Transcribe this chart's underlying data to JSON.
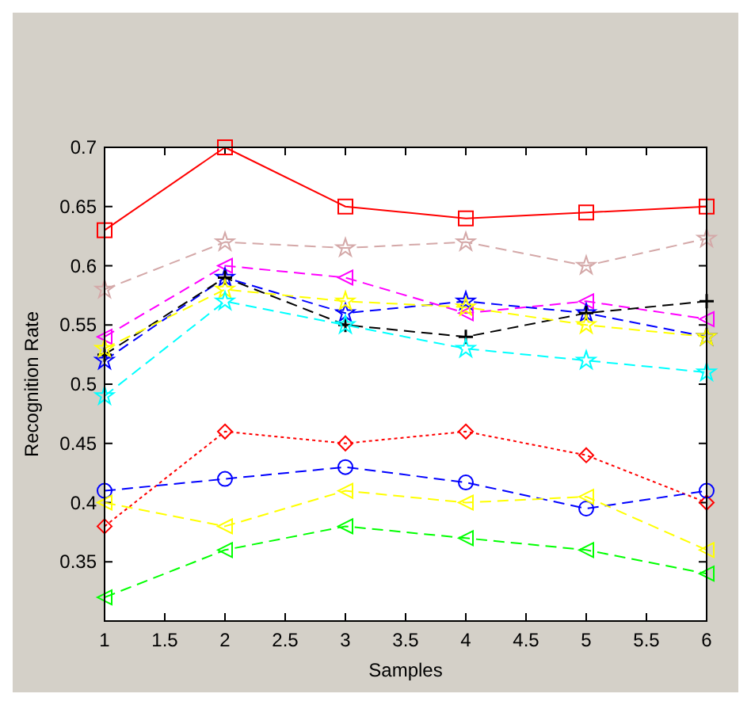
{
  "chart_data": {
    "type": "line",
    "xlabel": "Samples",
    "ylabel": "Recognition Rate",
    "x": [
      1,
      2,
      3,
      4,
      5,
      6
    ],
    "xlim": [
      1,
      6
    ],
    "xticks": [
      1,
      1.5,
      2,
      2.5,
      3,
      3.5,
      4,
      4.5,
      5,
      5.5,
      6
    ],
    "ylim": [
      0.3,
      0.7
    ],
    "yticks": [
      0.35,
      0.4,
      0.45,
      0.5,
      0.55,
      0.6,
      0.65,
      0.7
    ],
    "grid": false,
    "series": [
      {
        "color": "#ff0000",
        "marker": "square",
        "line_style": "solid",
        "values": [
          0.63,
          0.7,
          0.65,
          0.64,
          0.645,
          0.65
        ]
      },
      {
        "color": "#d4a8a8",
        "marker": "star",
        "line_style": "dashed",
        "values": [
          0.58,
          0.62,
          0.615,
          0.62,
          0.6,
          0.623
        ]
      },
      {
        "color": "#ff00ff",
        "marker": "triangle",
        "line_style": "dashed",
        "values": [
          0.54,
          0.6,
          0.59,
          0.56,
          0.57,
          0.555
        ]
      },
      {
        "color": "#0000ff",
        "marker": "star",
        "line_style": "dashed",
        "values": [
          0.52,
          0.59,
          0.56,
          0.57,
          0.56,
          0.54
        ]
      },
      {
        "color": "#000000",
        "marker": "cross",
        "line_style": "dashed",
        "values": [
          0.525,
          0.59,
          0.55,
          0.54,
          0.56,
          0.57
        ]
      },
      {
        "color": "#ffff00",
        "marker": "star",
        "line_style": "dashed",
        "values": [
          0.53,
          0.58,
          0.57,
          0.565,
          0.55,
          0.54
        ]
      },
      {
        "color": "#00ffff",
        "marker": "star",
        "line_style": "dashed",
        "values": [
          0.49,
          0.57,
          0.55,
          0.53,
          0.52,
          0.51
        ]
      },
      {
        "color": "#ff0000",
        "marker": "diamond",
        "line_style": "dotted",
        "values": [
          0.38,
          0.46,
          0.45,
          0.46,
          0.44,
          0.4
        ]
      },
      {
        "color": "#0000ff",
        "marker": "circle",
        "line_style": "dashed",
        "values": [
          0.41,
          0.42,
          0.43,
          0.417,
          0.395,
          0.41
        ]
      },
      {
        "color": "#ffff00",
        "marker": "triangle",
        "line_style": "dashed",
        "values": [
          0.4,
          0.38,
          0.41,
          0.4,
          0.405,
          0.36
        ]
      },
      {
        "color": "#00ff00",
        "marker": "triangle",
        "line_style": "dashed",
        "values": [
          0.32,
          0.36,
          0.38,
          0.37,
          0.36,
          0.34
        ]
      }
    ]
  }
}
